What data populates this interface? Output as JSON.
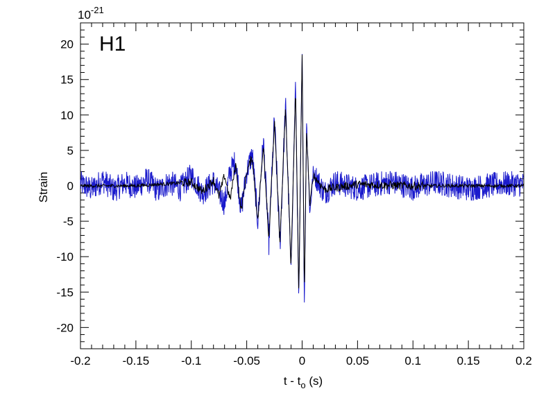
{
  "chart_data": {
    "type": "line",
    "panel_label": "H1",
    "exponent_label": {
      "base": "10",
      "exponent": "-21"
    },
    "xlabel": {
      "main": "t - t",
      "subscript": "o",
      "suffix": " (s)"
    },
    "ylabel": "Strain",
    "xlim": [
      -0.2,
      0.2
    ],
    "ylim": [
      -23,
      23
    ],
    "x_ticks": [
      -0.2,
      -0.15,
      -0.1,
      -0.05,
      0,
      0.05,
      0.1,
      0.15,
      0.2
    ],
    "x_tick_labels": [
      "-0.2",
      "-0.15",
      "-0.1",
      "-0.05",
      "0",
      "0.05",
      "0.1",
      "0.15",
      "0.2"
    ],
    "y_ticks": [
      -20,
      -15,
      -10,
      -5,
      0,
      5,
      10,
      15,
      20
    ],
    "y_tick_labels": [
      "-20",
      "-15",
      "-10",
      "-5",
      "0",
      "5",
      "10",
      "15",
      "20"
    ],
    "grid": false,
    "series": [
      {
        "color": "#1a1acc",
        "style": "noisy measured strain",
        "x": [
          -0.2,
          -0.19,
          -0.18,
          -0.17,
          -0.16,
          -0.15,
          -0.14,
          -0.13,
          -0.12,
          -0.11,
          -0.1,
          -0.09,
          -0.08,
          -0.07,
          -0.065,
          -0.06,
          -0.055,
          -0.05,
          -0.045,
          -0.04,
          -0.035,
          -0.03,
          -0.025,
          -0.02,
          -0.015,
          -0.01,
          -0.006,
          -0.003,
          0,
          0.002,
          0.004,
          0.007,
          0.01,
          0.02,
          0.03,
          0.05,
          0.08,
          0.1,
          0.12,
          0.15,
          0.18,
          0.2
        ],
        "y": [
          0.3,
          -0.5,
          0.8,
          -0.6,
          0.4,
          -0.3,
          0.9,
          -0.7,
          0.5,
          -0.4,
          1.5,
          -1.0,
          0.6,
          -2.5,
          2.0,
          3.5,
          -3.5,
          2.0,
          4.5,
          -5.0,
          6.5,
          -8.0,
          9.5,
          -8.5,
          11.5,
          -12.0,
          14.5,
          -16.5,
          19.5,
          -17.0,
          9.0,
          -4.0,
          2.0,
          -1.0,
          0.5,
          -0.4,
          0.6,
          -0.3,
          0.5,
          -0.4,
          0.3,
          0.2
        ]
      },
      {
        "color": "#000000",
        "style": "smooth waveform",
        "x": [
          -0.2,
          -0.15,
          -0.1,
          -0.09,
          -0.08,
          -0.075,
          -0.07,
          -0.065,
          -0.06,
          -0.055,
          -0.05,
          -0.045,
          -0.04,
          -0.035,
          -0.03,
          -0.025,
          -0.02,
          -0.015,
          -0.01,
          -0.006,
          -0.003,
          0,
          0.002,
          0.004,
          0.007,
          0.01,
          0.02,
          0.05,
          0.1,
          0.15,
          0.2
        ],
        "y": [
          0,
          0,
          0.5,
          -0.8,
          0.8,
          -1.5,
          1.5,
          -2.0,
          3.0,
          -3.5,
          2.0,
          4.0,
          -5.0,
          6.0,
          -7.5,
          9.0,
          -8.0,
          11.0,
          -11.5,
          14.0,
          -15.5,
          19.0,
          -16.0,
          8.0,
          -3.0,
          1.5,
          -0.5,
          0.2,
          0,
          0,
          0
        ]
      }
    ]
  }
}
